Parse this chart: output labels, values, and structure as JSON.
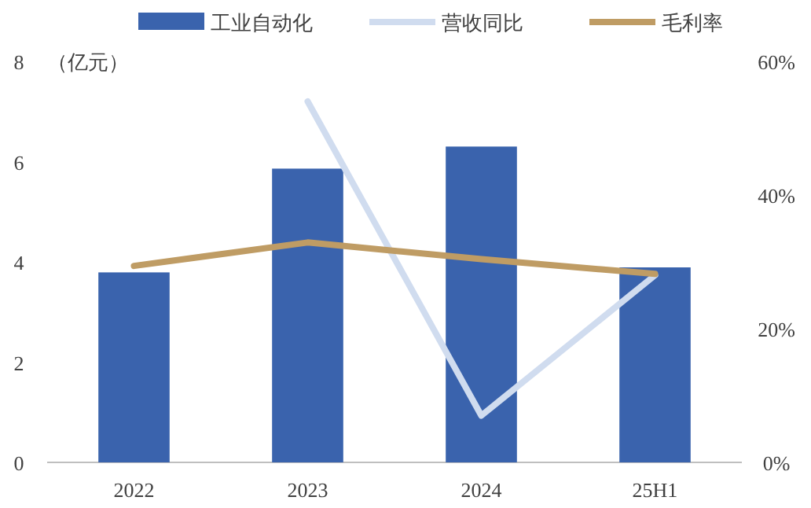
{
  "chart_data": {
    "type": "bar",
    "ylabel": "（亿元）",
    "categories": [
      "2022",
      "2023",
      "2024",
      "25H1"
    ],
    "series": [
      {
        "name": "工业自动化",
        "color": "#3a63ad",
        "values": [
          3.79,
          5.86,
          6.3,
          3.89
        ]
      },
      {
        "name": "营收同比",
        "type": "line",
        "axis": "y2",
        "color": "#d0dcef",
        "values": [
          null,
          54,
          7,
          28
        ]
      },
      {
        "name": "毛利率",
        "type": "line",
        "axis": "y2",
        "color": "#bf9c64",
        "values": [
          29.4,
          32.9,
          30.4,
          28.2
        ]
      }
    ],
    "ylim": [
      0,
      8
    ],
    "yticks": [
      0,
      2,
      4,
      6,
      8
    ],
    "y2lim": [
      0,
      60
    ],
    "y2ticks": [
      {
        "value": 0,
        "label": "0%"
      },
      {
        "value": 20,
        "label": "20%"
      },
      {
        "value": 40,
        "label": "40%"
      },
      {
        "value": 60,
        "label": "60%"
      }
    ],
    "legend": "top"
  }
}
